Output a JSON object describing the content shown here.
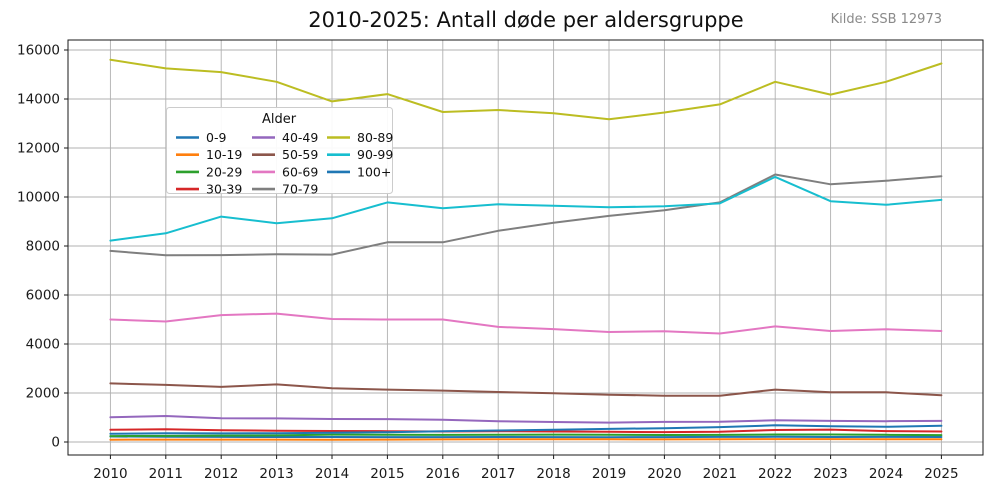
{
  "header": {
    "title": "2010-2025: Antall døde per aldersgruppe",
    "source": "Kilde: SSB 12973"
  },
  "chart_data": {
    "type": "line",
    "x": [
      2010,
      2011,
      2012,
      2013,
      2014,
      2015,
      2016,
      2017,
      2018,
      2019,
      2020,
      2021,
      2022,
      2023,
      2024,
      2025
    ],
    "xlabel": "",
    "ylabel": "",
    "ylim": [
      0,
      16000
    ],
    "ytick_step": 2000,
    "grid": true,
    "legend": {
      "title": "Alder",
      "columns": 3,
      "position": "upper-left-inside"
    },
    "series": [
      {
        "name": "0-9",
        "color": "#1f77b4",
        "values": [
          225,
          215,
          210,
          205,
          203,
          200,
          198,
          203,
          200,
          195,
          200,
          210,
          213,
          203,
          210,
          203
        ]
      },
      {
        "name": "10-19",
        "color": "#ff7f0e",
        "values": [
          95,
          98,
          96,
          100,
          95,
          100,
          106,
          110,
          114,
          110,
          106,
          112,
          120,
          118,
          114,
          112
        ]
      },
      {
        "name": "20-29",
        "color": "#2ca02c",
        "values": [
          240,
          250,
          260,
          270,
          300,
          295,
          290,
          295,
          300,
          295,
          285,
          290,
          305,
          305,
          295,
          280
        ]
      },
      {
        "name": "30-39",
        "color": "#d62728",
        "values": [
          500,
          520,
          480,
          460,
          450,
          440,
          430,
          440,
          430,
          415,
          405,
          415,
          490,
          505,
          445,
          430
        ]
      },
      {
        "name": "40-49",
        "color": "#9467bd",
        "values": [
          1010,
          1060,
          970,
          965,
          940,
          935,
          905,
          845,
          815,
          790,
          820,
          825,
          885,
          860,
          850,
          860
        ]
      },
      {
        "name": "50-59",
        "color": "#8c564b",
        "values": [
          2390,
          2330,
          2250,
          2350,
          2190,
          2140,
          2100,
          2040,
          1990,
          1930,
          1890,
          1890,
          2140,
          2030,
          2030,
          1910
        ]
      },
      {
        "name": "60-69",
        "color": "#e377c2",
        "values": [
          5000,
          4920,
          5180,
          5240,
          5020,
          5000,
          5000,
          4700,
          4610,
          4490,
          4520,
          4430,
          4720,
          4530,
          4600,
          4530
        ]
      },
      {
        "name": "70-79",
        "color": "#7f7f7f",
        "values": [
          7800,
          7620,
          7630,
          7660,
          7650,
          8150,
          8150,
          8620,
          8950,
          9230,
          9460,
          9780,
          10920,
          10520,
          10660,
          10850
        ]
      },
      {
        "name": "80-89",
        "color": "#bcbd22",
        "values": [
          15600,
          15250,
          15100,
          14700,
          13900,
          14200,
          13470,
          13550,
          13420,
          13170,
          13450,
          13780,
          14700,
          14180,
          14700,
          15450
        ]
      },
      {
        "name": "90-99",
        "color": "#17becf",
        "values": [
          8220,
          8520,
          9200,
          8930,
          9130,
          9780,
          9540,
          9700,
          9640,
          9580,
          9620,
          9740,
          10820,
          9830,
          9680,
          9880
        ]
      },
      {
        "name": "100+",
        "color": "#1f77b4",
        "values": [
          340,
          355,
          350,
          360,
          380,
          400,
          440,
          470,
          500,
          535,
          565,
          610,
          680,
          640,
          620,
          660
        ]
      }
    ]
  }
}
